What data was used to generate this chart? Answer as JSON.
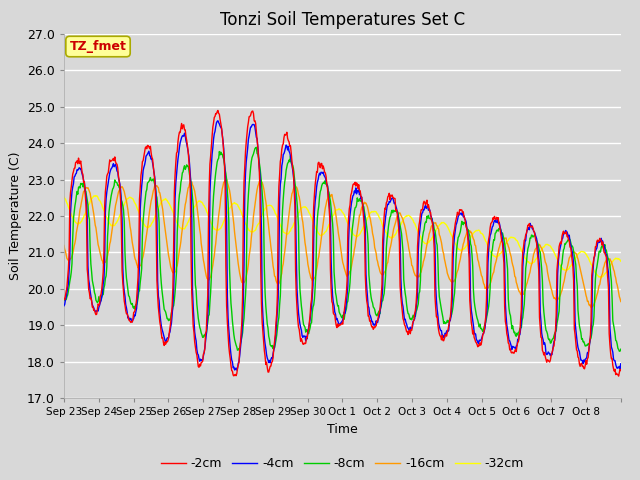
{
  "title": "Tonzi Soil Temperatures Set C",
  "xlabel": "Time",
  "ylabel": "Soil Temperature (C)",
  "ylim": [
    17.0,
    27.0
  ],
  "yticks": [
    17.0,
    18.0,
    19.0,
    20.0,
    21.0,
    22.0,
    23.0,
    24.0,
    25.0,
    26.0,
    27.0
  ],
  "xtick_labels": [
    "Sep 23",
    "Sep 24",
    "Sep 25",
    "Sep 26",
    "Sep 27",
    "Sep 28",
    "Sep 29",
    "Sep 30",
    "Oct 1",
    "Oct 2",
    "Oct 3",
    "Oct 4",
    "Oct 5",
    "Oct 6",
    "Oct 7",
    "Oct 8"
  ],
  "line_colors": [
    "#ff0000",
    "#0000ff",
    "#00cc00",
    "#ff9900",
    "#ffff00"
  ],
  "line_labels": [
    "-2cm",
    "-4cm",
    "-8cm",
    "-16cm",
    "-32cm"
  ],
  "bg_color": "#d8d8d8",
  "annotation_text": "TZ_fmet",
  "annotation_bg": "#ffff99",
  "annotation_edge": "#aaaa00",
  "title_fontsize": 12,
  "axis_fontsize": 9,
  "legend_fontsize": 9
}
